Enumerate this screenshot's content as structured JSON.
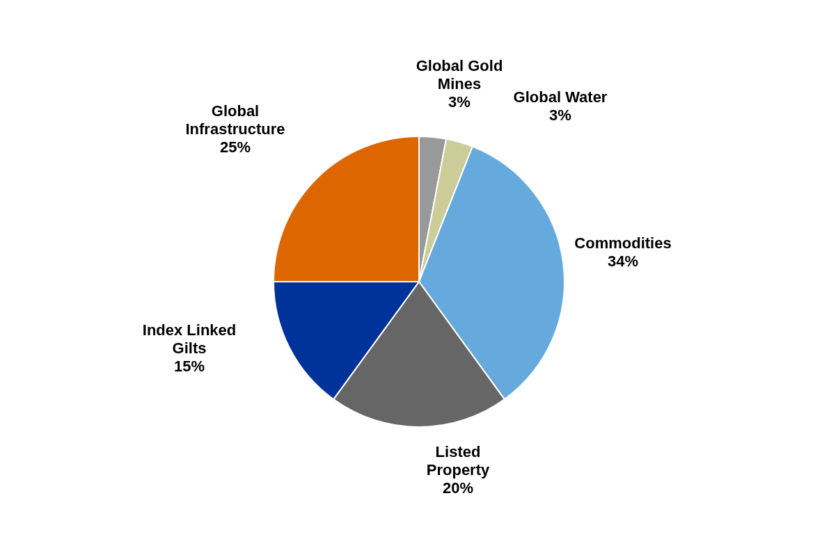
{
  "chart_data": {
    "type": "pie",
    "categories": [
      "Global Gold Mines",
      "Global Water",
      "Commodities",
      "Listed Property",
      "Index Linked Gilts",
      "Global Infrastructure"
    ],
    "values": [
      3,
      3,
      34,
      20,
      15,
      25
    ],
    "value_labels": [
      "3%",
      "3%",
      "34%",
      "20%",
      "15%",
      "25%"
    ],
    "colors": [
      "#999999",
      "#cccc99",
      "#66aadd",
      "#666666",
      "#003399",
      "#dd6600"
    ],
    "data_labels": true
  }
}
